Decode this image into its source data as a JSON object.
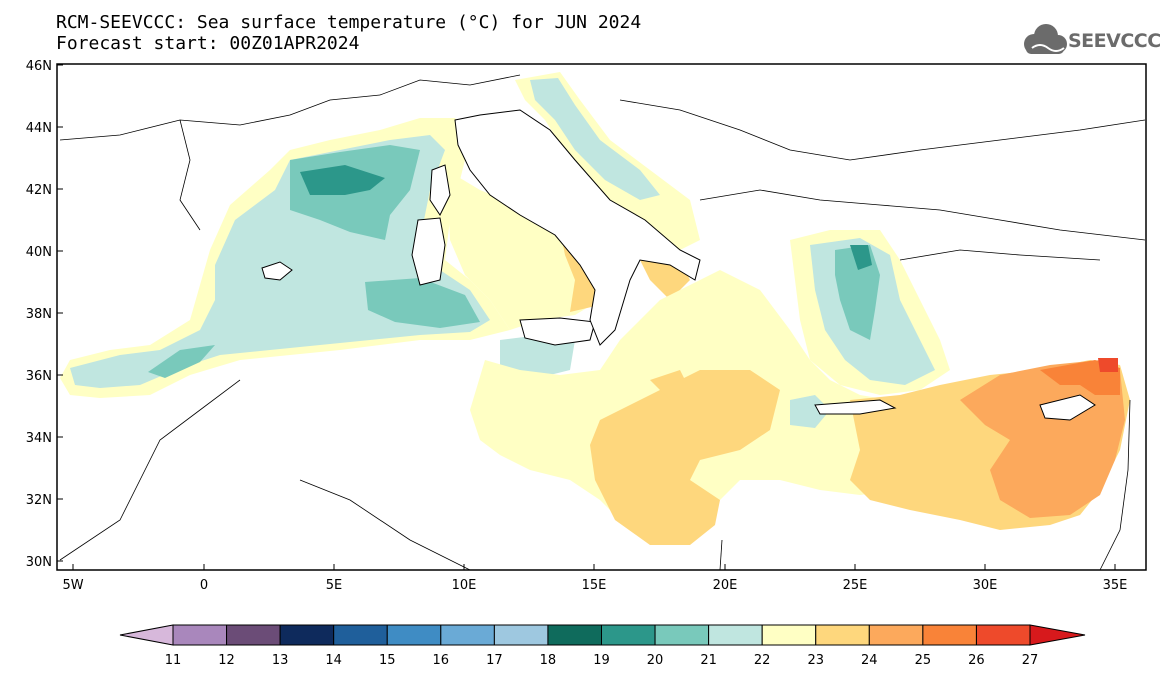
{
  "header": {
    "title_line1": "RCM-SEEVCCC: Sea surface temperature (°C) for JUN 2024",
    "title_line2": "Forecast start: 00Z01APR2024"
  },
  "logo": {
    "text": "SEEVCCC",
    "icon": "cloud-icon"
  },
  "map": {
    "region": "Mediterranean Sea",
    "lon_range": [
      -5.5,
      36.5
    ],
    "lat_range": [
      29.5,
      46
    ],
    "lon_ticks": [
      "5W",
      "0",
      "5E",
      "10E",
      "15E",
      "20E",
      "25E",
      "30E",
      "35E"
    ],
    "lat_ticks": [
      "30N",
      "32N",
      "34N",
      "36N",
      "38N",
      "40N",
      "42N",
      "44N",
      "46N"
    ]
  },
  "legend": {
    "labels": [
      "11",
      "12",
      "13",
      "14",
      "15",
      "16",
      "17",
      "18",
      "19",
      "20",
      "21",
      "22",
      "23",
      "24",
      "25",
      "26",
      "27"
    ],
    "colors": [
      "#d7b8db",
      "#a987bc",
      "#6b4c77",
      "#0e2a5c",
      "#1f5f9b",
      "#3f8cc4",
      "#6aaad6",
      "#9ec8e0",
      "#0f6b5c",
      "#2c978a",
      "#79c9bb",
      "#c0e6e0",
      "#ffffc4",
      "#fed77d",
      "#fca95c",
      "#f98338",
      "#ee4a2b",
      "#d7191c"
    ]
  }
}
